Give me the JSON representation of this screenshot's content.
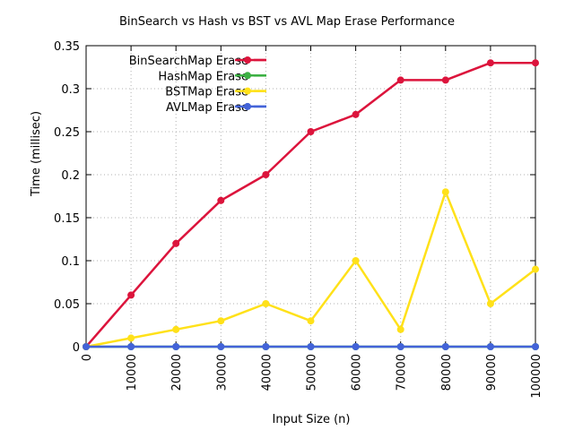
{
  "chart_data": {
    "type": "line",
    "title": "BinSearch vs Hash vs BST vs AVL Map Erase Performance",
    "xlabel": "Input Size (n)",
    "ylabel": "Time (millisec)",
    "x": [
      0,
      10000,
      20000,
      30000,
      40000,
      50000,
      60000,
      70000,
      80000,
      90000,
      100000
    ],
    "x_tick_labels": [
      "0",
      "10000",
      "20000",
      "30000",
      "40000",
      "50000",
      "60000",
      "70000",
      "80000",
      "90000",
      "100000"
    ],
    "y_tick_labels": [
      "0",
      "0.05",
      "0.1",
      "0.15",
      "0.2",
      "0.25",
      "0.3",
      "0.35"
    ],
    "y_ticks": [
      0,
      0.05,
      0.1,
      0.15,
      0.2,
      0.25,
      0.3,
      0.35
    ],
    "xlim": [
      0,
      100000
    ],
    "ylim": [
      0,
      0.35
    ],
    "grid": true,
    "legend_position": "top-left",
    "series": [
      {
        "name": "BinSearchMap Erase",
        "color": "#dc143c",
        "values": [
          0,
          0.06,
          0.12,
          0.17,
          0.2,
          0.25,
          0.27,
          0.31,
          0.31,
          0.33,
          0.33
        ]
      },
      {
        "name": "HashMap Erase",
        "color": "#3cb043",
        "values": [
          0,
          0,
          0,
          0,
          0,
          0,
          0,
          0,
          0,
          0,
          0
        ]
      },
      {
        "name": "BSTMap Erase",
        "color": "#ffe119",
        "values": [
          0,
          0.01,
          0.02,
          0.03,
          0.05,
          0.03,
          0.1,
          0.02,
          0.18,
          0.05,
          0.09
        ]
      },
      {
        "name": "AVLMap Erase",
        "color": "#4363d8",
        "values": [
          0,
          0,
          0,
          0,
          0,
          0,
          0,
          0,
          0,
          0,
          0
        ]
      }
    ]
  }
}
